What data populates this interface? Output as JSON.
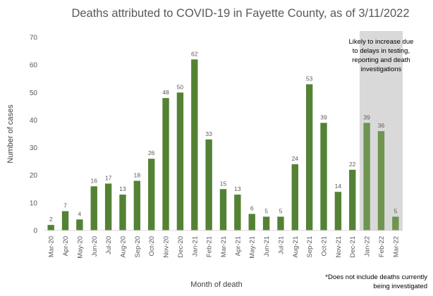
{
  "chart_data": {
    "type": "bar",
    "title": "Deaths attributed to COVID-19 in Fayette County, as of 3/11/2022",
    "xlabel": "Month of death",
    "ylabel": "Number of cases",
    "ylim": [
      0,
      70
    ],
    "yticks": [
      0,
      10,
      20,
      30,
      40,
      50,
      60,
      70
    ],
    "grid": false,
    "categories": [
      "Mar-20",
      "Apr-20",
      "May-20",
      "Jun-20",
      "Jul-20",
      "Aug-20",
      "Sep-20",
      "Oct-20",
      "Nov-20",
      "Dec-20",
      "Jan-21",
      "Feb-21",
      "Mar-21",
      "Apr-21",
      "May-21",
      "Jun-21",
      "Jul-21",
      "Aug-21",
      "Sep-21",
      "Oct-21",
      "Nov-21",
      "Dec-21",
      "Jan-22",
      "Feb-22",
      "Mar-22"
    ],
    "values": [
      2,
      7,
      4,
      16,
      17,
      13,
      18,
      26,
      48,
      50,
      62,
      33,
      15,
      13,
      6,
      5,
      5,
      24,
      53,
      39,
      14,
      22,
      39,
      36,
      5
    ],
    "shaded_categories": [
      "Jan-22",
      "Feb-22",
      "Mar-22"
    ],
    "shaded_annotation": [
      "Likely to increase due",
      "to delays in testing,",
      "reporting and death",
      "investigations"
    ],
    "footnote": [
      "*Does not include deaths currently",
      "being investigated"
    ]
  },
  "colors": {
    "bar": "#548235",
    "bar_shaded": "#6f9450",
    "shade": "#d9d9d9",
    "title": "#595959",
    "label": "#404040",
    "tick": "#595959",
    "axis": "#d9d9d9"
  }
}
